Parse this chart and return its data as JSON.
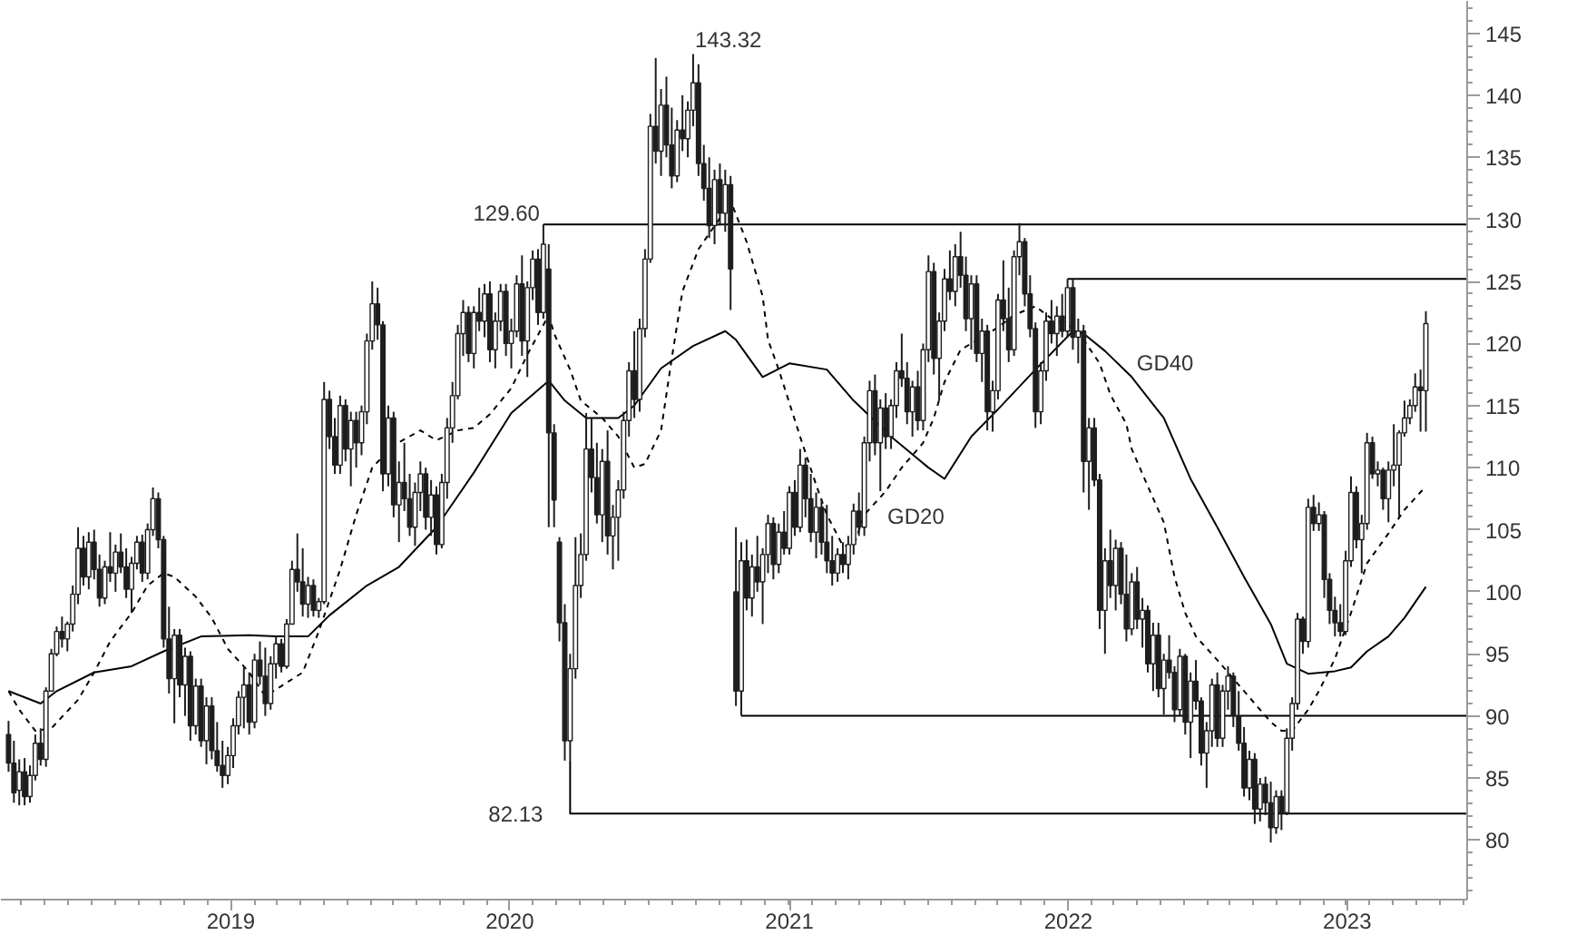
{
  "chart_data": {
    "type": "candlestick",
    "color": "#1e1e1e",
    "x": [
      "2018-03-16",
      "2018-03-23",
      "2018-03-30",
      "2018-04-06",
      "2018-04-13",
      "2018-04-20",
      "2018-04-27",
      "2018-05-04",
      "2018-05-11",
      "2018-05-18",
      "2018-05-25",
      "2018-06-01",
      "2018-06-08",
      "2018-06-15",
      "2018-06-22",
      "2018-06-29",
      "2018-07-06",
      "2018-07-13",
      "2018-07-20",
      "2018-07-27",
      "2018-08-03",
      "2018-08-10",
      "2018-08-17",
      "2018-08-24",
      "2018-08-31",
      "2018-09-07",
      "2018-09-14",
      "2018-09-21",
      "2018-09-28",
      "2018-10-05",
      "2018-10-12",
      "2018-10-19",
      "2018-10-26",
      "2018-11-02",
      "2018-11-09",
      "2018-11-16",
      "2018-11-23",
      "2018-11-30",
      "2018-12-07",
      "2018-12-14",
      "2018-12-21",
      "2018-12-28",
      "2019-01-04",
      "2019-01-11",
      "2019-01-18",
      "2019-01-25",
      "2019-02-01",
      "2019-02-08",
      "2019-02-15",
      "2019-02-22",
      "2019-03-01",
      "2019-03-08",
      "2019-03-15",
      "2019-03-22",
      "2019-03-29",
      "2019-04-05",
      "2019-04-12",
      "2019-04-19",
      "2019-04-26",
      "2019-05-03",
      "2019-05-10",
      "2019-05-17",
      "2019-05-24",
      "2019-05-31",
      "2019-06-07",
      "2019-06-14",
      "2019-06-21",
      "2019-06-28",
      "2019-07-05",
      "2019-07-12",
      "2019-07-19",
      "2019-07-26",
      "2019-08-02",
      "2019-08-09",
      "2019-08-16",
      "2019-08-23",
      "2019-08-30",
      "2019-09-06",
      "2019-09-13",
      "2019-09-20",
      "2019-09-27",
      "2019-10-04",
      "2019-10-11",
      "2019-10-18",
      "2019-10-25",
      "2019-11-01",
      "2019-11-08",
      "2019-11-15",
      "2019-11-22",
      "2019-11-29",
      "2019-12-06",
      "2019-12-13",
      "2019-12-20",
      "2019-12-27",
      "2020-01-03",
      "2020-01-10",
      "2020-01-17",
      "2020-01-24",
      "2020-01-31",
      "2020-02-07",
      "2020-02-14",
      "2020-02-21",
      "2020-02-28",
      "2020-03-06",
      "2020-03-13",
      "2020-03-20",
      "2020-03-27",
      "2020-04-03",
      "2020-04-10",
      "2020-04-17",
      "2020-04-24",
      "2020-05-01",
      "2020-05-08",
      "2020-05-15",
      "2020-05-22",
      "2020-05-29",
      "2020-06-05",
      "2020-06-12",
      "2020-06-19",
      "2020-06-26",
      "2020-07-03",
      "2020-07-10",
      "2020-07-17",
      "2020-07-24",
      "2020-07-31",
      "2020-08-07",
      "2020-08-14",
      "2020-08-21",
      "2020-08-28",
      "2020-09-04",
      "2020-09-11",
      "2020-09-18",
      "2020-09-25",
      "2020-10-02",
      "2020-10-09",
      "2020-10-16",
      "2020-10-23",
      "2020-10-30",
      "2020-11-06",
      "2020-11-13",
      "2020-11-20",
      "2020-11-27",
      "2020-12-04",
      "2020-12-11",
      "2020-12-18",
      "2020-12-25",
      "2021-01-01",
      "2021-01-08",
      "2021-01-15",
      "2021-01-22",
      "2021-01-29",
      "2021-02-05",
      "2021-02-12",
      "2021-02-19",
      "2021-02-26",
      "2021-03-05",
      "2021-03-12",
      "2021-03-19",
      "2021-03-26",
      "2021-04-02",
      "2021-04-09",
      "2021-04-16",
      "2021-04-23",
      "2021-04-30",
      "2021-05-07",
      "2021-05-14",
      "2021-05-21",
      "2021-05-28",
      "2021-06-04",
      "2021-06-11",
      "2021-06-18",
      "2021-06-25",
      "2021-07-02",
      "2021-07-09",
      "2021-07-16",
      "2021-07-23",
      "2021-07-30",
      "2021-08-06",
      "2021-08-13",
      "2021-08-20",
      "2021-08-27",
      "2021-09-03",
      "2021-09-10",
      "2021-09-17",
      "2021-09-24",
      "2021-10-01",
      "2021-10-08",
      "2021-10-15",
      "2021-10-22",
      "2021-10-29",
      "2021-11-05",
      "2021-11-12",
      "2021-11-19",
      "2021-11-26",
      "2021-12-03",
      "2021-12-10",
      "2021-12-17",
      "2021-12-24",
      "2021-12-31",
      "2022-01-07",
      "2022-01-14",
      "2022-01-21",
      "2022-01-28",
      "2022-02-04",
      "2022-02-11",
      "2022-02-18",
      "2022-02-25",
      "2022-03-04",
      "2022-03-11",
      "2022-03-18",
      "2022-03-25",
      "2022-04-01",
      "2022-04-08",
      "2022-04-15",
      "2022-04-22",
      "2022-04-29",
      "2022-05-06",
      "2022-05-13",
      "2022-05-20",
      "2022-05-27",
      "2022-06-03",
      "2022-06-10",
      "2022-06-17",
      "2022-06-24",
      "2022-07-01",
      "2022-07-08",
      "2022-07-15",
      "2022-07-22",
      "2022-07-29",
      "2022-08-05",
      "2022-08-12",
      "2022-08-19",
      "2022-08-26",
      "2022-09-02",
      "2022-09-09",
      "2022-09-16",
      "2022-09-23",
      "2022-09-30",
      "2022-10-07",
      "2022-10-14",
      "2022-10-21",
      "2022-10-28",
      "2022-11-04",
      "2022-11-11",
      "2022-11-18",
      "2022-11-25",
      "2022-12-02",
      "2022-12-09",
      "2022-12-16",
      "2022-12-23",
      "2022-12-30",
      "2023-01-06",
      "2023-01-13",
      "2023-01-20",
      "2023-01-27",
      "2023-02-03",
      "2023-02-10",
      "2023-02-17",
      "2023-02-24",
      "2023-03-03",
      "2023-03-10",
      "2023-03-17",
      "2023-03-24",
      "2023-03-31",
      "2023-04-07",
      "2023-04-14"
    ],
    "ohlc": [
      [
        88.5,
        89.6,
        85.5,
        86.2
      ],
      [
        86.2,
        88.0,
        83.0,
        83.8
      ],
      [
        84.0,
        86.5,
        82.8,
        85.5
      ],
      [
        85.5,
        86.6,
        82.8,
        83.5
      ],
      [
        83.5,
        86.0,
        83.0,
        85.2
      ],
      [
        85.2,
        88.5,
        84.8,
        87.8
      ],
      [
        87.8,
        89.0,
        86.0,
        86.5
      ],
      [
        86.5,
        92.3,
        85.9,
        92.0
      ],
      [
        92.0,
        95.4,
        92.0,
        95.0
      ],
      [
        95.0,
        97.2,
        94.8,
        96.8
      ],
      [
        96.8,
        98.0,
        95.5,
        96.2
      ],
      [
        96.2,
        97.6,
        95.2,
        97.4
      ],
      [
        97.4,
        100.5,
        96.8,
        99.8
      ],
      [
        99.8,
        105.2,
        99.0,
        103.5
      ],
      [
        103.5,
        104.5,
        100.5,
        101.2
      ],
      [
        101.2,
        104.8,
        100.2,
        104.0
      ],
      [
        104.0,
        105.0,
        101.0,
        101.8
      ],
      [
        101.8,
        103.0,
        98.8,
        99.5
      ],
      [
        99.5,
        102.5,
        99.0,
        102.0
      ],
      [
        102.0,
        104.8,
        100.8,
        101.5
      ],
      [
        101.5,
        103.8,
        100.0,
        103.2
      ],
      [
        103.2,
        104.7,
        101.5,
        102.0
      ],
      [
        102.0,
        103.5,
        99.5,
        100.2
      ],
      [
        100.2,
        102.8,
        98.3,
        102.3
      ],
      [
        102.3,
        104.5,
        101.8,
        104.0
      ],
      [
        104.0,
        104.6,
        100.8,
        101.5
      ],
      [
        101.5,
        105.5,
        101.0,
        105.0
      ],
      [
        105.0,
        108.4,
        104.5,
        107.5
      ],
      [
        107.5,
        108.0,
        103.5,
        104.2
      ],
      [
        104.2,
        104.5,
        95.5,
        96.2
      ],
      [
        96.2,
        98.8,
        91.8,
        93.0
      ],
      [
        93.0,
        97.0,
        89.4,
        96.5
      ],
      [
        96.5,
        97.0,
        91.5,
        92.5
      ],
      [
        92.5,
        95.5,
        90.0,
        94.8
      ],
      [
        94.8,
        95.2,
        88.0,
        89.2
      ],
      [
        89.2,
        93.0,
        88.5,
        92.4
      ],
      [
        92.4,
        93.0,
        87.5,
        88.0
      ],
      [
        88.0,
        91.5,
        86.1,
        90.8
      ],
      [
        90.8,
        91.5,
        86.5,
        87.2
      ],
      [
        87.2,
        89.5,
        85.5,
        86.0
      ],
      [
        86.0,
        88.0,
        84.2,
        85.2
      ],
      [
        85.2,
        87.5,
        84.5,
        86.8
      ],
      [
        86.8,
        89.8,
        85.8,
        89.2
      ],
      [
        89.2,
        92.0,
        88.5,
        91.5
      ],
      [
        91.5,
        93.9,
        89.0,
        92.5
      ],
      [
        92.5,
        93.5,
        88.5,
        89.5
      ],
      [
        89.5,
        95.0,
        89.0,
        94.5
      ],
      [
        94.5,
        96.0,
        92.5,
        93.2
      ],
      [
        93.2,
        95.5,
        90.0,
        91.0
      ],
      [
        91.0,
        94.8,
        90.5,
        94.2
      ],
      [
        94.2,
        96.4,
        93.0,
        95.8
      ],
      [
        95.8,
        96.2,
        93.5,
        94.0
      ],
      [
        94.0,
        97.8,
        93.8,
        97.4
      ],
      [
        97.4,
        102.5,
        97.4,
        101.8
      ],
      [
        101.8,
        104.7,
        100.0,
        100.8
      ],
      [
        100.8,
        103.5,
        98.0,
        99.0
      ],
      [
        99.0,
        101.2,
        97.9,
        100.5
      ],
      [
        100.5,
        101.0,
        98.0,
        98.5
      ],
      [
        98.5,
        99.5,
        97.9,
        99.2
      ],
      [
        99.2,
        116.9,
        99.0,
        115.5
      ],
      [
        115.5,
        116.2,
        111.5,
        112.5
      ],
      [
        112.5,
        114.0,
        109.5,
        110.2
      ],
      [
        110.2,
        115.8,
        109.5,
        115.0
      ],
      [
        115.0,
        115.5,
        110.5,
        111.5
      ],
      [
        111.5,
        114.5,
        108.5,
        113.8
      ],
      [
        113.8,
        114.5,
        110.0,
        112.0
      ],
      [
        112.0,
        115.0,
        111.0,
        114.5
      ],
      [
        114.5,
        120.8,
        113.5,
        120.2
      ],
      [
        120.2,
        125.0,
        119.5,
        123.2
      ],
      [
        123.2,
        124.5,
        120.3,
        121.5
      ],
      [
        121.5,
        121.8,
        108.1,
        109.5
      ],
      [
        109.5,
        115.0,
        108.5,
        114.0
      ],
      [
        114.0,
        114.5,
        106.0,
        107.0
      ],
      [
        107.0,
        110.5,
        104.0,
        108.8
      ],
      [
        108.8,
        112.0,
        106.5,
        107.5
      ],
      [
        107.5,
        109.5,
        104.5,
        105.2
      ],
      [
        105.2,
        108.8,
        103.7,
        108.0
      ],
      [
        108.0,
        110.5,
        106.5,
        109.5
      ],
      [
        109.5,
        110.0,
        105.0,
        106.0
      ],
      [
        106.0,
        109.0,
        104.5,
        107.8
      ],
      [
        107.8,
        108.5,
        103.0,
        103.8
      ],
      [
        103.8,
        109.5,
        103.5,
        108.8
      ],
      [
        108.8,
        114.0,
        107.5,
        113.2
      ],
      [
        113.2,
        116.9,
        112.0,
        115.8
      ],
      [
        115.8,
        121.5,
        115.5,
        120.8
      ],
      [
        120.8,
        123.5,
        119.0,
        122.5
      ],
      [
        122.5,
        123.0,
        118.5,
        119.2
      ],
      [
        119.2,
        123.0,
        118.0,
        122.5
      ],
      [
        122.5,
        124.5,
        121.0,
        121.8
      ],
      [
        121.8,
        124.8,
        120.5,
        124.0
      ],
      [
        124.0,
        125.0,
        118.5,
        119.5
      ],
      [
        119.5,
        122.5,
        118.0,
        121.8
      ],
      [
        121.8,
        124.8,
        121.0,
        124.2
      ],
      [
        124.2,
        124.8,
        119.0,
        120.0
      ],
      [
        120.0,
        122.0,
        118.0,
        121.0
      ],
      [
        121.0,
        125.5,
        120.5,
        124.8
      ],
      [
        124.8,
        127.1,
        119.0,
        120.2
      ],
      [
        120.2,
        125.0,
        117.3,
        124.5
      ],
      [
        124.5,
        127.5,
        123.5,
        126.8
      ],
      [
        126.8,
        127.6,
        121.5,
        122.5
      ],
      [
        122.5,
        129.6,
        122.0,
        128.0
      ],
      [
        126.0,
        128.0,
        105.2,
        112.8
      ],
      [
        112.8,
        113.5,
        105.2,
        107.4
      ],
      [
        104.0,
        104.4,
        96.0,
        97.5
      ],
      [
        97.5,
        99.0,
        86.4,
        88.0
      ],
      [
        88.0,
        95.0,
        86.4,
        93.8
      ],
      [
        93.8,
        104.4,
        93.0,
        100.5
      ],
      [
        100.5,
        104.7,
        99.5,
        103.0
      ],
      [
        103.0,
        114.4,
        102.5,
        111.5
      ],
      [
        111.5,
        114.0,
        108.0,
        109.2
      ],
      [
        109.2,
        112.0,
        105.5,
        106.2
      ],
      [
        106.2,
        111.5,
        104.0,
        110.5
      ],
      [
        110.5,
        113.0,
        103.0,
        104.5
      ],
      [
        104.5,
        107.0,
        101.8,
        106.0
      ],
      [
        106.0,
        109.0,
        102.5,
        108.2
      ],
      [
        108.2,
        114.5,
        107.5,
        113.8
      ],
      [
        113.8,
        118.5,
        112.5,
        117.8
      ],
      [
        117.8,
        121.0,
        114.0,
        115.5
      ],
      [
        115.5,
        122.0,
        114.5,
        121.2
      ],
      [
        121.2,
        127.6,
        120.5,
        126.8
      ],
      [
        126.8,
        138.5,
        126.5,
        137.5
      ],
      [
        137.5,
        143.0,
        134.5,
        135.5
      ],
      [
        135.5,
        140.5,
        133.5,
        139.2
      ],
      [
        139.2,
        141.5,
        135.0,
        136.0
      ],
      [
        136.0,
        139.0,
        132.5,
        133.5
      ],
      [
        133.5,
        138.0,
        133.0,
        137.2
      ],
      [
        137.2,
        140.0,
        135.5,
        136.5
      ],
      [
        136.5,
        139.5,
        135.0,
        138.8
      ],
      [
        138.8,
        143.32,
        137.5,
        141.0
      ],
      [
        141.0,
        142.5,
        133.5,
        134.5
      ],
      [
        134.5,
        136.0,
        131.5,
        132.5
      ],
      [
        132.5,
        135.0,
        128.5,
        129.5
      ],
      [
        129.5,
        134.0,
        128.0,
        133.2
      ],
      [
        133.2,
        134.5,
        129.5,
        130.5
      ],
      [
        130.5,
        134.0,
        129.0,
        132.8
      ],
      [
        132.8,
        133.5,
        122.7,
        126.0
      ],
      [
        100.0,
        105.2,
        90.8,
        92.0
      ],
      [
        92.0,
        104.0,
        90.0,
        102.5
      ],
      [
        102.5,
        104.2,
        98.5,
        99.5
      ],
      [
        99.5,
        103.0,
        98.0,
        102.0
      ],
      [
        102.0,
        104.5,
        100.0,
        100.8
      ],
      [
        100.8,
        103.5,
        97.4,
        103.0
      ],
      [
        103.0,
        106.2,
        101.5,
        105.5
      ],
      [
        105.5,
        106.0,
        101.0,
        102.2
      ],
      [
        102.2,
        105.5,
        101.5,
        104.8
      ],
      [
        104.8,
        106.5,
        103.0,
        103.5
      ],
      [
        103.5,
        108.5,
        103.0,
        108.0
      ],
      [
        108.0,
        109.0,
        104.5,
        105.2
      ],
      [
        105.2,
        111.5,
        104.8,
        110.2
      ],
      [
        110.2,
        110.8,
        106.0,
        107.5
      ],
      [
        107.5,
        109.5,
        104.0,
        104.8
      ],
      [
        104.8,
        108.0,
        102.7,
        106.8
      ],
      [
        106.8,
        107.5,
        103.0,
        104.0
      ],
      [
        104.0,
        107.0,
        101.5,
        102.5
      ],
      [
        102.5,
        104.5,
        100.5,
        101.5
      ],
      [
        101.5,
        103.5,
        100.8,
        103.0
      ],
      [
        103.0,
        104.0,
        101.5,
        102.2
      ],
      [
        102.2,
        104.5,
        101.0,
        103.8
      ],
      [
        103.8,
        107.1,
        103.0,
        106.5
      ],
      [
        106.5,
        108.0,
        104.5,
        105.2
      ],
      [
        105.2,
        112.5,
        104.5,
        112.0
      ],
      [
        112.0,
        117.0,
        110.5,
        116.2
      ],
      [
        116.2,
        117.5,
        111.0,
        112.0
      ],
      [
        112.0,
        115.5,
        108.1,
        114.8
      ],
      [
        114.8,
        116.0,
        111.5,
        112.5
      ],
      [
        112.5,
        115.5,
        111.5,
        115.0
      ],
      [
        115.0,
        118.5,
        114.0,
        117.8
      ],
      [
        117.8,
        120.8,
        116.5,
        117.2
      ],
      [
        117.2,
        118.5,
        113.5,
        114.5
      ],
      [
        114.5,
        117.0,
        112.5,
        116.5
      ],
      [
        116.5,
        117.8,
        113.0,
        113.8
      ],
      [
        113.8,
        120.0,
        113.0,
        119.5
      ],
      [
        119.5,
        127.1,
        118.5,
        125.8
      ],
      [
        125.8,
        126.5,
        117.5,
        118.8
      ],
      [
        118.8,
        122.5,
        115.4,
        121.8
      ],
      [
        121.8,
        126.0,
        121.0,
        125.2
      ],
      [
        125.2,
        127.5,
        123.5,
        124.2
      ],
      [
        124.2,
        128.0,
        123.0,
        127.0
      ],
      [
        127.0,
        129.0,
        124.5,
        125.5
      ],
      [
        125.5,
        127.0,
        121.0,
        122.0
      ],
      [
        122.0,
        125.5,
        119.5,
        124.8
      ],
      [
        124.8,
        125.5,
        118.5,
        119.2
      ],
      [
        119.2,
        122.0,
        116.9,
        121.0
      ],
      [
        121.0,
        121.5,
        113.0,
        114.5
      ],
      [
        114.5,
        117.0,
        112.9,
        116.2
      ],
      [
        116.2,
        124.0,
        115.5,
        123.5
      ],
      [
        123.5,
        126.7,
        121.0,
        122.0
      ],
      [
        122.0,
        124.5,
        118.5,
        119.5
      ],
      [
        119.5,
        127.5,
        119.0,
        127.0
      ],
      [
        127.0,
        129.7,
        125.5,
        128.2
      ],
      [
        128.2,
        128.5,
        123.0,
        124.0
      ],
      [
        124.0,
        125.5,
        120.5,
        121.2
      ],
      [
        121.2,
        121.7,
        113.2,
        114.5
      ],
      [
        114.5,
        118.5,
        113.5,
        117.8
      ],
      [
        117.8,
        122.5,
        117.0,
        121.8
      ],
      [
        121.8,
        123.5,
        120.0,
        120.8
      ],
      [
        120.8,
        123.0,
        119.0,
        122.2
      ],
      [
        122.2,
        124.0,
        120.5,
        121.0
      ],
      [
        121.0,
        125.2,
        120.5,
        124.5
      ],
      [
        124.5,
        125.2,
        119.5,
        120.5
      ],
      [
        120.5,
        122.0,
        118.4,
        121.0
      ],
      [
        121.0,
        121.5,
        108.0,
        110.5
      ],
      [
        110.5,
        114.0,
        106.6,
        113.2
      ],
      [
        113.2,
        114.0,
        108.5,
        109.0
      ],
      [
        109.0,
        109.5,
        97.0,
        98.5
      ],
      [
        98.5,
        103.5,
        95.0,
        102.5
      ],
      [
        102.5,
        105.0,
        99.5,
        100.5
      ],
      [
        100.5,
        104.2,
        98.5,
        103.5
      ],
      [
        103.5,
        104.0,
        99.0,
        99.8
      ],
      [
        99.8,
        103.0,
        96.0,
        97.0
      ],
      [
        97.0,
        101.5,
        96.5,
        100.8
      ],
      [
        100.8,
        102.0,
        97.0,
        97.8
      ],
      [
        97.8,
        99.5,
        95.5,
        98.5
      ],
      [
        98.5,
        98.9,
        93.5,
        94.2
      ],
      [
        94.2,
        97.5,
        92.0,
        96.5
      ],
      [
        96.5,
        97.5,
        91.5,
        92.2
      ],
      [
        92.2,
        95.0,
        90.1,
        94.5
      ],
      [
        94.5,
        96.5,
        93.0,
        93.5
      ],
      [
        93.5,
        94.0,
        89.5,
        90.5
      ],
      [
        90.5,
        95.4,
        90.0,
        94.8
      ],
      [
        94.8,
        95.0,
        88.5,
        89.5
      ],
      [
        89.5,
        93.5,
        86.6,
        92.8
      ],
      [
        92.8,
        94.5,
        90.5,
        91.2
      ],
      [
        91.2,
        91.5,
        86.0,
        87.0
      ],
      [
        87.0,
        89.5,
        84.2,
        88.8
      ],
      [
        88.8,
        93.0,
        87.5,
        92.5
      ],
      [
        92.5,
        93.5,
        87.5,
        88.2
      ],
      [
        88.2,
        92.5,
        87.5,
        92.0
      ],
      [
        92.0,
        94.0,
        90.5,
        93.2
      ],
      [
        93.2,
        93.5,
        89.1,
        90.0
      ],
      [
        90.0,
        92.0,
        87.2,
        87.8
      ],
      [
        87.8,
        89.1,
        83.5,
        84.2
      ],
      [
        84.2,
        87.2,
        83.2,
        86.5
      ],
      [
        86.5,
        87.0,
        81.3,
        82.5
      ],
      [
        82.5,
        85.0,
        81.5,
        84.5
      ],
      [
        84.5,
        85.1,
        82.0,
        83.0
      ],
      [
        83.0,
        84.7,
        79.8,
        81.0
      ],
      [
        81.0,
        84.0,
        80.5,
        83.5
      ],
      [
        83.5,
        84.0,
        80.8,
        82.2
      ],
      [
        82.2,
        89.0,
        82.0,
        88.2
      ],
      [
        88.2,
        91.5,
        87.2,
        91.0
      ],
      [
        91.0,
        98.3,
        90.5,
        97.8
      ],
      [
        97.8,
        98.0,
        95.0,
        96.0
      ],
      [
        96.0,
        107.5,
        95.5,
        106.8
      ],
      [
        106.8,
        107.8,
        104.9,
        105.5
      ],
      [
        105.5,
        107.2,
        104.9,
        106.2
      ],
      [
        106.2,
        106.5,
        99.5,
        101.0
      ],
      [
        101.0,
        101.5,
        97.4,
        98.5
      ],
      [
        98.5,
        99.6,
        96.4,
        97.5
      ],
      [
        97.5,
        99.0,
        96.4,
        96.8
      ],
      [
        96.8,
        103.3,
        96.5,
        102.5
      ],
      [
        102.5,
        109.3,
        102.0,
        108.0
      ],
      [
        108.0,
        108.5,
        103.5,
        104.2
      ],
      [
        104.2,
        106.2,
        101.5,
        105.5
      ],
      [
        105.5,
        112.8,
        105.0,
        112.0
      ],
      [
        112.0,
        112.5,
        109.1,
        109.5
      ],
      [
        109.5,
        110.5,
        108.5,
        109.8
      ],
      [
        109.8,
        110.0,
        106.6,
        107.5
      ],
      [
        107.5,
        110.5,
        105.6,
        109.8
      ],
      [
        109.8,
        113.5,
        108.5,
        110.2
      ],
      [
        110.2,
        113.0,
        106.0,
        112.8
      ],
      [
        112.8,
        115.4,
        112.5,
        114.0
      ],
      [
        114.0,
        115.5,
        113.5,
        115.0
      ],
      [
        115.0,
        117.6,
        114.5,
        116.5
      ],
      [
        116.5,
        117.9,
        112.9,
        116.2
      ],
      [
        116.2,
        122.6,
        112.9,
        121.6
      ]
    ],
    "series": [
      {
        "type": "line",
        "name": "GD20",
        "color": "#000000",
        "line_style": "dashed",
        "x": [
          "2018-03-16",
          "2018-03-30",
          "2018-04-20",
          "2018-05-11",
          "2018-06-15",
          "2018-07-06",
          "2018-07-27",
          "2018-08-24",
          "2018-09-14",
          "2018-10-05",
          "2018-10-19",
          "2018-11-16",
          "2018-12-07",
          "2018-12-28",
          "2019-01-25",
          "2019-02-15",
          "2019-03-08",
          "2019-04-05",
          "2019-04-26",
          "2019-05-24",
          "2019-06-14",
          "2019-07-05",
          "2019-08-02",
          "2019-09-06",
          "2019-09-27",
          "2019-10-25",
          "2019-11-15",
          "2019-12-06",
          "2020-01-03",
          "2020-01-24",
          "2020-02-21",
          "2020-02-28",
          "2020-03-20",
          "2020-04-03",
          "2020-05-01",
          "2020-05-22",
          "2020-06-12",
          "2020-06-26",
          "2020-07-17",
          "2020-07-31",
          "2020-08-14",
          "2020-09-04",
          "2020-10-02",
          "2020-10-16",
          "2020-11-06",
          "2020-11-27",
          "2020-12-04",
          "2020-12-18",
          "2021-01-15",
          "2021-02-05",
          "2021-02-19",
          "2021-03-12",
          "2021-03-26",
          "2021-04-09",
          "2021-05-07",
          "2021-05-28",
          "2021-06-25",
          "2021-07-09",
          "2021-07-23",
          "2021-08-13",
          "2021-09-10",
          "2021-10-01",
          "2021-10-22",
          "2021-11-19",
          "2021-12-10",
          "2022-01-07",
          "2022-01-21",
          "2022-02-11",
          "2022-02-25",
          "2022-03-18",
          "2022-03-25",
          "2022-04-15",
          "2022-05-06",
          "2022-05-20",
          "2022-06-03",
          "2022-06-17",
          "2022-07-15",
          "2022-08-05",
          "2022-09-02",
          "2022-09-23",
          "2022-10-07",
          "2022-10-21",
          "2022-11-11",
          "2022-11-25",
          "2022-12-16",
          "2023-01-06",
          "2023-01-27",
          "2023-02-24",
          "2023-03-17",
          "2023-04-14"
        ],
        "values": [
          92.0,
          90.5,
          88.8,
          89.0,
          91.3,
          93.5,
          96.0,
          98.3,
          100.5,
          101.5,
          101.2,
          99.6,
          97.9,
          95.4,
          93.5,
          91.6,
          92.4,
          93.5,
          96.8,
          101.8,
          106.2,
          110.0,
          111.8,
          113.0,
          112.2,
          113.0,
          113.2,
          114.3,
          116.4,
          119.1,
          122.3,
          120.8,
          117.9,
          115.4,
          114.0,
          112.5,
          110.0,
          110.3,
          113.0,
          118.8,
          124.2,
          127.6,
          130.1,
          131.5,
          128.2,
          123.8,
          120.3,
          117.9,
          112.5,
          108.6,
          106.2,
          103.7,
          103.7,
          106.2,
          108.1,
          110.0,
          112.0,
          114.0,
          116.9,
          119.5,
          120.5,
          121.3,
          122.3,
          123.0,
          122.0,
          121.3,
          120.3,
          118.4,
          115.9,
          113.5,
          111.5,
          108.5,
          105.6,
          101.2,
          98.3,
          96.4,
          94.5,
          93.0,
          91.0,
          89.5,
          88.8,
          88.8,
          90.5,
          92.0,
          94.6,
          98.3,
          102.3,
          104.7,
          106.6,
          108.5
        ]
      },
      {
        "type": "line",
        "name": "GD40",
        "color": "#000000",
        "line_style": "solid",
        "x": [
          "2018-03-16",
          "2018-04-27",
          "2018-05-18",
          "2018-07-06",
          "2018-08-24",
          "2018-10-05",
          "2018-11-23",
          "2019-01-25",
          "2019-03-01",
          "2019-04-12",
          "2019-05-10",
          "2019-06-28",
          "2019-08-09",
          "2019-09-27",
          "2019-11-15",
          "2020-01-03",
          "2020-02-21",
          "2020-03-13",
          "2020-04-10",
          "2020-05-22",
          "2020-06-12",
          "2020-07-17",
          "2020-08-28",
          "2020-10-09",
          "2020-10-23",
          "2020-11-27",
          "2021-01-01",
          "2021-02-19",
          "2021-03-26",
          "2021-05-14",
          "2021-07-02",
          "2021-07-23",
          "2021-08-27",
          "2021-10-01",
          "2021-11-19",
          "2022-01-07",
          "2022-01-21",
          "2022-02-18",
          "2022-03-25",
          "2022-05-06",
          "2022-06-10",
          "2022-07-15",
          "2022-08-19",
          "2022-09-23",
          "2022-10-14",
          "2022-11-11",
          "2022-12-16",
          "2023-01-06",
          "2023-01-27",
          "2023-02-24",
          "2023-03-17",
          "2023-04-14"
        ],
        "values": [
          92.0,
          91.0,
          92.0,
          93.5,
          94.0,
          95.2,
          96.4,
          96.5,
          96.4,
          96.4,
          98.1,
          100.5,
          102.0,
          105.2,
          109.6,
          114.4,
          117.0,
          115.4,
          114.0,
          114.0,
          115.0,
          118.0,
          119.8,
          121.0,
          120.3,
          117.3,
          118.4,
          117.9,
          115.4,
          112.5,
          110.0,
          109.1,
          112.5,
          114.7,
          117.9,
          121.0,
          120.8,
          119.4,
          117.3,
          114.0,
          109.1,
          105.2,
          101.2,
          97.4,
          94.2,
          93.4,
          93.6,
          93.9,
          95.2,
          96.4,
          97.9,
          100.4
        ]
      },
      {
        "type": "line",
        "color": "#000000",
        "x": [
          "2020-02-14",
          "2023-06-07"
        ],
        "values": [
          129.6,
          129.6
        ]
      },
      {
        "type": "line",
        "color": "#000000",
        "x": [
          "2021-12-31",
          "2023-06-07"
        ],
        "values": [
          125.2,
          125.2
        ]
      },
      {
        "type": "line",
        "color": "#000000",
        "x": [
          "2020-10-30",
          "2023-06-07"
        ],
        "values": [
          90.0,
          90.0
        ]
      },
      {
        "type": "line",
        "color": "#000000",
        "x": [
          "2020-03-20",
          "2020-03-20",
          "2023-06-07"
        ],
        "values": [
          86.4,
          82.13,
          82.13
        ]
      }
    ],
    "annotations": [
      {
        "text": "143.32",
        "x": "2020-08-28",
        "y": 143.32
      },
      {
        "text": "129.60",
        "x": "2020-02-14",
        "y": 129.6
      },
      {
        "text": "82.13",
        "x": "2020-03-20",
        "y": 82.13
      }
    ],
    "xlim": [
      "2018-03-06",
      "2023-06-07"
    ],
    "xticks": [
      {
        "value": "2019-01-01",
        "label": "2019"
      },
      {
        "value": "2020-01-01",
        "label": "2020"
      },
      {
        "value": "2021-01-01",
        "label": "2021"
      },
      {
        "value": "2022-01-01",
        "label": "2022"
      },
      {
        "value": "2023-01-01",
        "label": "2023"
      }
    ],
    "ylim": [
      75.2,
      147.6
    ],
    "yticks": [
      80,
      85,
      90,
      95,
      100,
      105,
      110,
      115,
      120,
      125,
      130,
      135,
      140,
      145
    ]
  }
}
